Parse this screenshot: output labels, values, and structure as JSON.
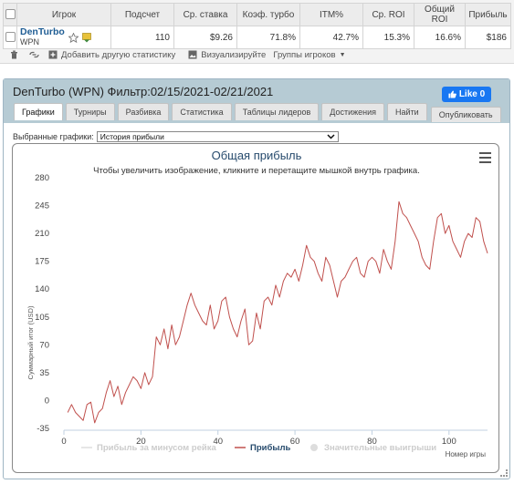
{
  "stats_table": {
    "headers": [
      "Игрок",
      "Подсчет",
      "Ср. ставка",
      "Коэф. турбо",
      "ITM%",
      "Ср. ROI",
      "Общий ROI",
      "Прибыль"
    ],
    "row": {
      "player_name": "DenTurbo",
      "network": "WPN",
      "count": "110",
      "avg_stake": "$9.26",
      "turbo_coef": "71.8%",
      "itm": "42.7%",
      "avg_roi": "15.3%",
      "total_roi": "16.6%",
      "profit": "$186"
    }
  },
  "toolbar": {
    "add_stats": "Добавить другую статистику",
    "visualize": "Визуализируйте",
    "player_groups": "Группы игроков"
  },
  "panel": {
    "title": "DenTurbo (WPN) Фильтр:02/15/2021-02/21/2021",
    "like_label": "Like 0",
    "tabs": [
      "Графики",
      "Турниры",
      "Разбивка",
      "Статистика",
      "Таблицы лидеров",
      "Достижения",
      "Найти"
    ],
    "publish_tab": "Опубликовать",
    "select_label": "Выбранные графики:",
    "select_value": "История прибыли"
  },
  "chart_data": {
    "type": "line",
    "title": "Общая прибыль",
    "subtitle": "Чтобы увеличить изображение, кликните и перетащите мышкой внутрь графика.",
    "ylabel": "Суммарный итог (USD)",
    "xlabel": "Номер игры",
    "ylim": [
      -35,
      280
    ],
    "xlim": [
      0,
      110
    ],
    "yticks": [
      "-35",
      "0",
      "35",
      "70",
      "105",
      "140",
      "175",
      "210",
      "245",
      "280"
    ],
    "xticks": [
      "0",
      "20",
      "40",
      "60",
      "80",
      "100"
    ],
    "legend": [
      "Прибыль за минусом рейка",
      "Прибыль",
      "Значительные выигрыши"
    ],
    "series": [
      {
        "name": "Прибыль",
        "color": "#c0504d",
        "x": [
          1,
          2,
          3,
          4,
          5,
          6,
          7,
          8,
          9,
          10,
          11,
          12,
          13,
          14,
          15,
          16,
          17,
          18,
          19,
          20,
          21,
          22,
          23,
          24,
          25,
          26,
          27,
          28,
          29,
          30,
          31,
          32,
          33,
          34,
          35,
          36,
          37,
          38,
          39,
          40,
          41,
          42,
          43,
          44,
          45,
          46,
          47,
          48,
          49,
          50,
          51,
          52,
          53,
          54,
          55,
          56,
          57,
          58,
          59,
          60,
          61,
          62,
          63,
          64,
          65,
          66,
          67,
          68,
          69,
          70,
          71,
          72,
          73,
          74,
          75,
          76,
          77,
          78,
          79,
          80,
          81,
          82,
          83,
          84,
          85,
          86,
          87,
          88,
          89,
          90,
          91,
          92,
          93,
          94,
          95,
          96,
          97,
          98,
          99,
          100,
          101,
          102,
          103,
          104,
          105,
          106,
          107,
          108,
          109,
          110
        ],
        "values": [
          -15,
          -5,
          -15,
          -20,
          -25,
          -5,
          -2,
          -28,
          -15,
          -10,
          10,
          25,
          5,
          18,
          -5,
          10,
          20,
          30,
          25,
          15,
          35,
          20,
          30,
          80,
          70,
          90,
          65,
          95,
          70,
          80,
          100,
          120,
          135,
          120,
          110,
          100,
          95,
          120,
          90,
          100,
          125,
          130,
          105,
          90,
          80,
          100,
          115,
          70,
          75,
          110,
          90,
          125,
          130,
          120,
          145,
          130,
          150,
          160,
          155,
          165,
          150,
          170,
          195,
          180,
          175,
          160,
          150,
          180,
          170,
          150,
          130,
          150,
          155,
          165,
          175,
          180,
          160,
          155,
          175,
          180,
          175,
          160,
          190,
          175,
          165,
          200,
          250,
          235,
          230,
          220,
          210,
          200,
          180,
          170,
          165,
          200,
          230,
          235,
          210,
          220,
          200,
          190,
          180,
          200,
          210,
          205,
          230,
          225,
          200,
          185
        ]
      }
    ]
  }
}
